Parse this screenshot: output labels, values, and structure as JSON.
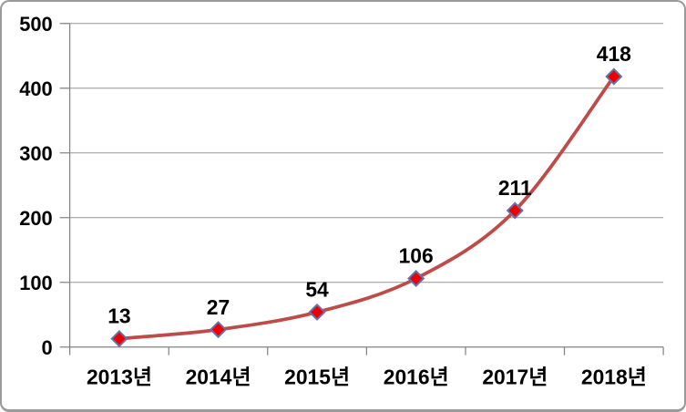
{
  "chart_data": {
    "type": "line",
    "categories": [
      "2013년",
      "2014년",
      "2015년",
      "2016년",
      "2017년",
      "2018년"
    ],
    "values": [
      13,
      27,
      54,
      106,
      211,
      418
    ],
    "data_labels": [
      "13",
      "27",
      "54",
      "106",
      "211",
      "418"
    ],
    "title": "",
    "xlabel": "",
    "ylabel": "",
    "ylim": [
      0,
      500
    ],
    "yticks": [
      0,
      100,
      200,
      300,
      400,
      500
    ],
    "ytick_labels": [
      "0",
      "100",
      "200",
      "300",
      "400",
      "500"
    ],
    "grid": true,
    "legend": "none",
    "smoothed": true,
    "series_name": "",
    "colors": {
      "line": "#BE4B48",
      "marker_fill": "#EE0000",
      "marker_stroke": "#6473AC",
      "gridline": "#969696",
      "axis": "#808080",
      "text": "#000000",
      "frame_border": "#9A9A9A",
      "background": "#FFFFFF"
    }
  }
}
